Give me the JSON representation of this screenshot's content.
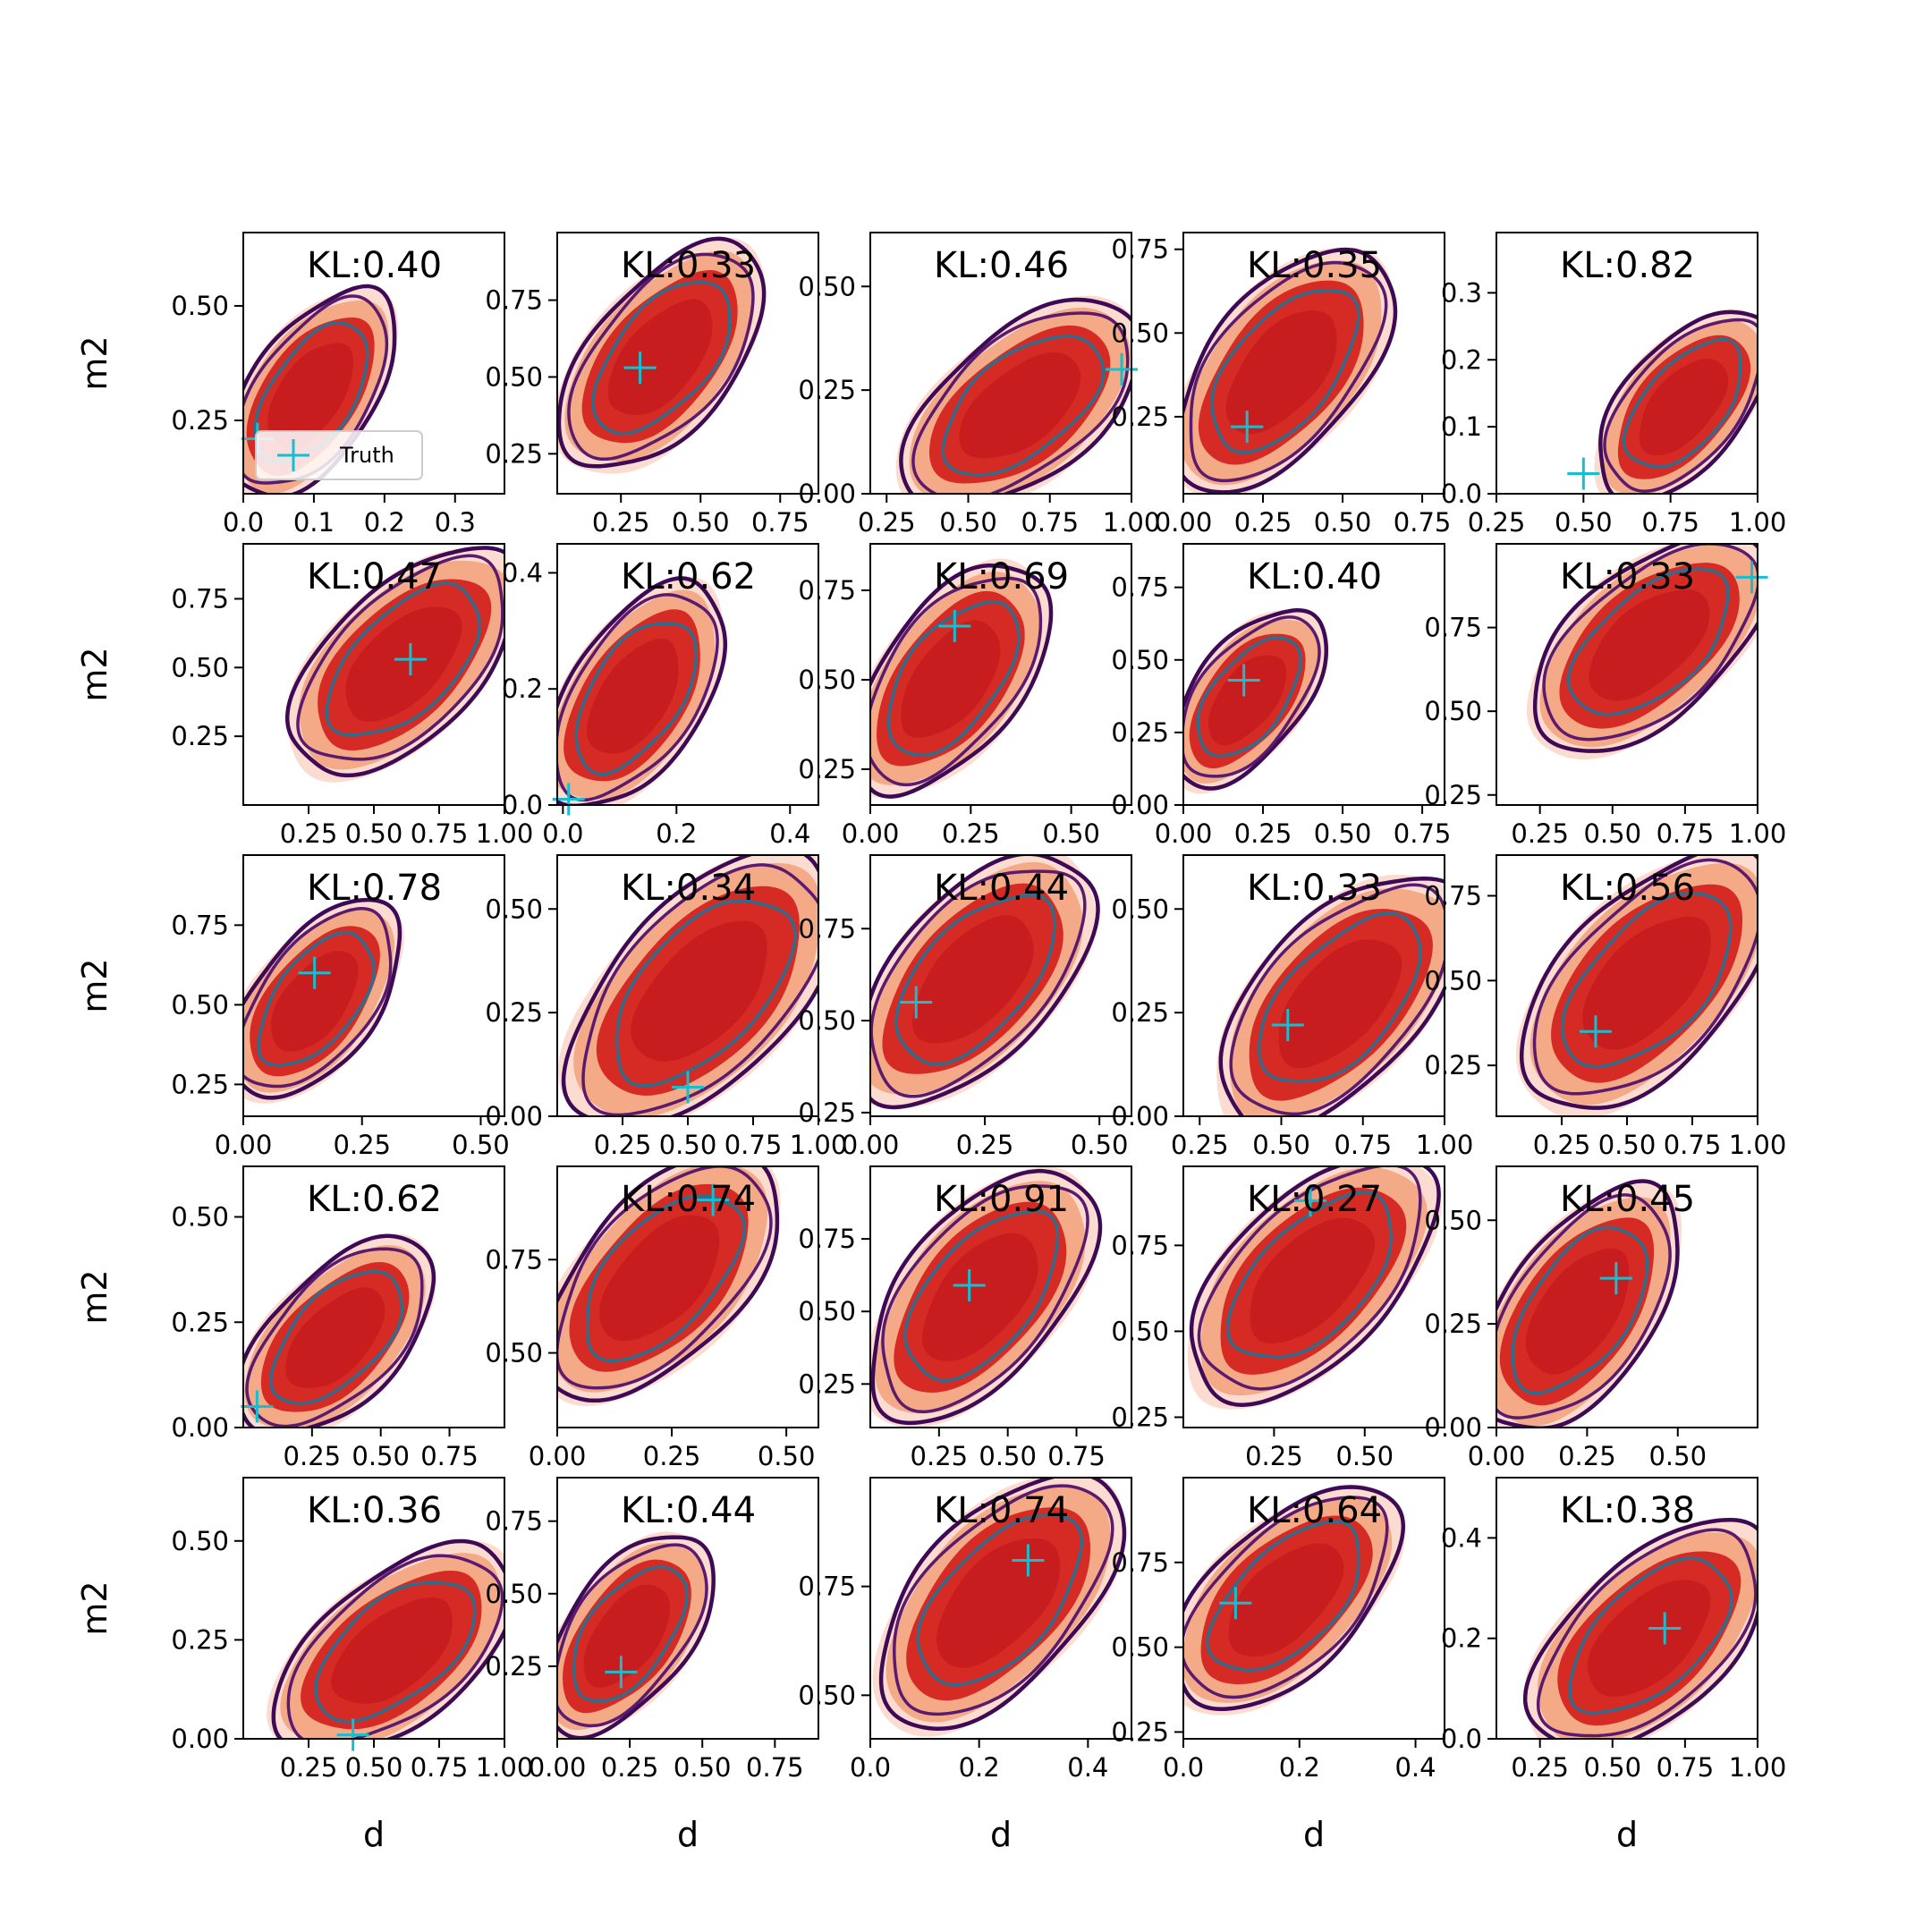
{
  "legend": {
    "label": "Truth",
    "position": "lower-left of first panel"
  },
  "colors": {
    "truth": "#17becf",
    "fill_outer": "#fcdcd0",
    "fill_mid": "#f4a987",
    "fill_inner": "#d62a25",
    "line_outer": "#3f0a55",
    "line_mid": "#5a1a6e",
    "line_inner": "#2d6e8e"
  },
  "chart_data": [
    {
      "type": "contour",
      "row": 0,
      "col": 0,
      "kl_label": "KL:0.40",
      "xlabel": "",
      "ylabel": "m2",
      "xlim": [
        0.0,
        0.37
      ],
      "ylim": [
        0.09,
        0.66
      ],
      "xticks": [
        0.0,
        0.1,
        0.2,
        0.3
      ],
      "xtick_labels": [
        "0.0",
        "0.1",
        "0.2",
        "0.3"
      ],
      "yticks": [
        0.25,
        0.5
      ],
      "ytick_labels": [
        "0.25",
        "0.50"
      ],
      "x": [
        0.0,
        0.19
      ],
      "y": [
        0.09,
        0.52
      ],
      "truth": [
        0.02,
        0.21
      ],
      "legend": true
    },
    {
      "type": "contour",
      "row": 0,
      "col": 1,
      "kl_label": "KL:0.33",
      "xlabel": "",
      "ylabel": "",
      "xlim": [
        0.05,
        0.87
      ],
      "ylim": [
        0.12,
        0.97
      ],
      "xticks": [
        0.25,
        0.5,
        0.75
      ],
      "xtick_labels": [
        "0.25",
        "0.50",
        "0.75"
      ],
      "yticks": [
        0.25,
        0.5,
        0.75
      ],
      "ytick_labels": [
        "0.25",
        "0.50",
        "0.75"
      ],
      "x": [
        0.1,
        0.65
      ],
      "y": [
        0.22,
        0.9
      ],
      "truth": [
        0.31,
        0.53
      ]
    },
    {
      "type": "contour",
      "row": 0,
      "col": 2,
      "kl_label": "KL:0.46",
      "xlabel": "",
      "ylabel": "",
      "xlim": [
        0.2,
        1.0
      ],
      "ylim": [
        0.0,
        0.63
      ],
      "xticks": [
        0.25,
        0.5,
        0.75,
        1.0
      ],
      "xtick_labels": [
        "0.25",
        "0.50",
        "0.75",
        "1.00"
      ],
      "yticks": [
        0.0,
        0.25,
        0.5
      ],
      "ytick_labels": [
        "0.00",
        "0.25",
        "0.50"
      ],
      "x": [
        0.32,
        1.0
      ],
      "y": [
        0.0,
        0.42
      ],
      "truth": [
        0.97,
        0.3
      ]
    },
    {
      "type": "contour",
      "row": 0,
      "col": 3,
      "kl_label": "KL:0.35",
      "xlabel": "",
      "ylabel": "",
      "xlim": [
        0.0,
        0.82
      ],
      "ylim": [
        0.02,
        0.8
      ],
      "xticks": [
        0.0,
        0.25,
        0.5,
        0.75
      ],
      "xtick_labels": [
        "0.00",
        "0.25",
        "0.50",
        "0.75"
      ],
      "yticks": [
        0.25,
        0.5,
        0.75
      ],
      "ytick_labels": [
        "0.25",
        "0.50",
        "0.75"
      ],
      "x": [
        0.02,
        0.6
      ],
      "y": [
        0.05,
        0.72
      ],
      "truth": [
        0.2,
        0.22
      ]
    },
    {
      "type": "contour",
      "row": 0,
      "col": 4,
      "kl_label": "KL:0.82",
      "xlabel": "",
      "ylabel": "",
      "xlim": [
        0.25,
        1.0
      ],
      "ylim": [
        0.0,
        0.39
      ],
      "xticks": [
        0.25,
        0.5,
        0.75,
        1.0
      ],
      "xtick_labels": [
        "0.25",
        "0.50",
        "0.75",
        "1.00"
      ],
      "yticks": [
        0.0,
        0.1,
        0.2,
        0.3
      ],
      "ytick_labels": [
        "0.0",
        "0.1",
        "0.2",
        "0.3"
      ],
      "x": [
        0.57,
        1.0
      ],
      "y": [
        0.0,
        0.26
      ],
      "truth": [
        0.5,
        0.03
      ]
    },
    {
      "type": "contour",
      "row": 1,
      "col": 0,
      "kl_label": "KL:0.47",
      "xlabel": "",
      "ylabel": "m2",
      "xlim": [
        0.0,
        1.0
      ],
      "ylim": [
        0.0,
        0.95
      ],
      "xticks": [
        0.25,
        0.5,
        0.75,
        1.0
      ],
      "xtick_labels": [
        "0.25",
        "0.50",
        "0.75",
        "1.00"
      ],
      "yticks": [
        0.25,
        0.5,
        0.75
      ],
      "ytick_labels": [
        "0.25",
        "0.50",
        "0.75"
      ],
      "x": [
        0.22,
        1.0
      ],
      "y": [
        0.15,
        0.88
      ],
      "truth": [
        0.64,
        0.53
      ]
    },
    {
      "type": "contour",
      "row": 1,
      "col": 1,
      "kl_label": "KL:0.62",
      "xlabel": "",
      "ylabel": "",
      "xlim": [
        -0.01,
        0.45
      ],
      "ylim": [
        0.0,
        0.45
      ],
      "xticks": [
        0.0,
        0.2,
        0.4
      ],
      "xtick_labels": [
        "0.0",
        "0.2",
        "0.4"
      ],
      "yticks": [
        0.0,
        0.2,
        0.4
      ],
      "ytick_labels": [
        "0.0",
        "0.2",
        "0.4"
      ],
      "x": [
        0.0,
        0.25
      ],
      "y": [
        0.0,
        0.37
      ],
      "truth": [
        0.01,
        0.01
      ]
    },
    {
      "type": "contour",
      "row": 1,
      "col": 2,
      "kl_label": "KL:0.69",
      "xlabel": "",
      "ylabel": "",
      "xlim": [
        0.0,
        0.65
      ],
      "ylim": [
        0.15,
        0.88
      ],
      "xticks": [
        0.0,
        0.25,
        0.5
      ],
      "xtick_labels": [
        "0.00",
        "0.25",
        "0.50"
      ],
      "yticks": [
        0.25,
        0.5,
        0.75
      ],
      "ytick_labels": [
        "0.25",
        "0.50",
        "0.75"
      ],
      "x": [
        0.0,
        0.4
      ],
      "y": [
        0.2,
        0.8
      ],
      "truth": [
        0.21,
        0.65
      ]
    },
    {
      "type": "contour",
      "row": 1,
      "col": 3,
      "kl_label": "KL:0.40",
      "xlabel": "",
      "ylabel": "",
      "xlim": [
        0.0,
        0.82
      ],
      "ylim": [
        0.0,
        0.9
      ],
      "xticks": [
        0.0,
        0.25,
        0.5,
        0.75
      ],
      "xtick_labels": [
        "0.00",
        "0.25",
        "0.50",
        "0.75"
      ],
      "yticks": [
        0.0,
        0.25,
        0.5,
        0.75
      ],
      "ytick_labels": [
        "0.00",
        "0.25",
        "0.50",
        "0.75"
      ],
      "x": [
        0.0,
        0.4
      ],
      "y": [
        0.08,
        0.65
      ],
      "truth": [
        0.19,
        0.43
      ]
    },
    {
      "type": "contour",
      "row": 1,
      "col": 4,
      "kl_label": "KL:0.33",
      "xlabel": "",
      "ylabel": "",
      "xlim": [
        0.1,
        1.0
      ],
      "ylim": [
        0.22,
        1.0
      ],
      "xticks": [
        0.25,
        0.5,
        0.75,
        1.0
      ],
      "xtick_labels": [
        "0.25",
        "0.50",
        "0.75",
        "1.00"
      ],
      "yticks": [
        0.25,
        0.5,
        0.75
      ],
      "ytick_labels": [
        "0.25",
        "0.50",
        "0.75"
      ],
      "x": [
        0.25,
        1.0
      ],
      "y": [
        0.42,
        0.98
      ],
      "truth": [
        0.98,
        0.9
      ]
    },
    {
      "type": "contour",
      "row": 2,
      "col": 0,
      "kl_label": "KL:0.78",
      "xlabel": "",
      "ylabel": "m2",
      "xlim": [
        0.0,
        0.55
      ],
      "ylim": [
        0.15,
        0.97
      ],
      "xticks": [
        0.0,
        0.25,
        0.5
      ],
      "xtick_labels": [
        "0.00",
        "0.25",
        "0.50"
      ],
      "yticks": [
        0.25,
        0.5,
        0.75
      ],
      "ytick_labels": [
        "0.25",
        "0.50",
        "0.75"
      ],
      "x": [
        0.0,
        0.3
      ],
      "y": [
        0.22,
        0.8
      ],
      "truth": [
        0.15,
        0.6
      ]
    },
    {
      "type": "contour",
      "row": 2,
      "col": 1,
      "kl_label": "KL:0.34",
      "xlabel": "",
      "ylabel": "",
      "xlim": [
        0.0,
        1.0
      ],
      "ylim": [
        0.0,
        0.63
      ],
      "xticks": [
        0.25,
        0.5,
        0.75,
        1.0
      ],
      "xtick_labels": [
        "0.25",
        "0.50",
        "0.75",
        "1.00"
      ],
      "yticks": [
        0.0,
        0.25,
        0.5
      ],
      "ytick_labels": [
        "0.00",
        "0.25",
        "0.50"
      ],
      "x": [
        0.1,
        1.0
      ],
      "y": [
        0.0,
        0.6
      ],
      "truth": [
        0.5,
        0.07
      ]
    },
    {
      "type": "contour",
      "row": 2,
      "col": 2,
      "kl_label": "KL:0.44",
      "xlabel": "",
      "ylabel": "",
      "xlim": [
        0.0,
        0.57
      ],
      "ylim": [
        0.24,
        0.95
      ],
      "xticks": [
        0.0,
        0.25,
        0.5
      ],
      "xtick_labels": [
        "0.00",
        "0.25",
        "0.50"
      ],
      "yticks": [
        0.25,
        0.5,
        0.75
      ],
      "ytick_labels": [
        "0.25",
        "0.50",
        "0.75"
      ],
      "x": [
        0.0,
        0.45
      ],
      "y": [
        0.3,
        0.92
      ],
      "truth": [
        0.1,
        0.55
      ]
    },
    {
      "type": "contour",
      "row": 2,
      "col": 3,
      "kl_label": "KL:0.33",
      "xlabel": "",
      "ylabel": "",
      "xlim": [
        0.2,
        1.0
      ],
      "ylim": [
        0.0,
        0.63
      ],
      "xticks": [
        0.25,
        0.5,
        0.75,
        1.0
      ],
      "xtick_labels": [
        "0.25",
        "0.50",
        "0.75",
        "1.00"
      ],
      "yticks": [
        0.0,
        0.25,
        0.5
      ],
      "ytick_labels": [
        "0.00",
        "0.25",
        "0.50"
      ],
      "x": [
        0.35,
        1.0
      ],
      "y": [
        0.0,
        0.55
      ],
      "truth": [
        0.52,
        0.22
      ]
    },
    {
      "type": "contour",
      "row": 2,
      "col": 4,
      "kl_label": "KL:0.56",
      "xlabel": "",
      "ylabel": "",
      "xlim": [
        0.0,
        1.0
      ],
      "ylim": [
        0.1,
        0.87
      ],
      "xticks": [
        0.25,
        0.5,
        0.75,
        1.0
      ],
      "xtick_labels": [
        "0.25",
        "0.50",
        "0.75",
        "1.00"
      ],
      "yticks": [
        0.25,
        0.5,
        0.75
      ],
      "ytick_labels": [
        "0.25",
        "0.50",
        "0.75"
      ],
      "x": [
        0.15,
        1.0
      ],
      "y": [
        0.15,
        0.84
      ],
      "truth": [
        0.38,
        0.35
      ]
    },
    {
      "type": "contour",
      "row": 3,
      "col": 0,
      "kl_label": "KL:0.62",
      "xlabel": "",
      "ylabel": "m2",
      "xlim": [
        0.0,
        0.95
      ],
      "ylim": [
        0.0,
        0.62
      ],
      "xticks": [
        0.25,
        0.5,
        0.75
      ],
      "xtick_labels": [
        "0.25",
        "0.50",
        "0.75"
      ],
      "yticks": [
        0.0,
        0.25,
        0.5
      ],
      "ytick_labels": [
        "0.00",
        "0.25",
        "0.50"
      ],
      "x": [
        0.02,
        0.65
      ],
      "y": [
        0.0,
        0.42
      ],
      "truth": [
        0.05,
        0.05
      ]
    },
    {
      "type": "contour",
      "row": 3,
      "col": 1,
      "kl_label": "KL:0.74",
      "xlabel": "",
      "ylabel": "",
      "xlim": [
        0.0,
        0.57
      ],
      "ylim": [
        0.3,
        1.0
      ],
      "xticks": [
        0.0,
        0.25,
        0.5
      ],
      "xtick_labels": [
        "0.00",
        "0.25",
        "0.50"
      ],
      "yticks": [
        0.5,
        0.75
      ],
      "ytick_labels": [
        "0.50",
        "0.75"
      ],
      "x": [
        0.0,
        0.45
      ],
      "y": [
        0.4,
        1.0
      ],
      "truth": [
        0.34,
        0.91
      ]
    },
    {
      "type": "contour",
      "row": 3,
      "col": 2,
      "kl_label": "KL:0.91",
      "xlabel": "",
      "ylabel": "",
      "xlim": [
        0.0,
        0.95
      ],
      "ylim": [
        0.1,
        1.0
      ],
      "xticks": [
        0.25,
        0.5,
        0.75
      ],
      "xtick_labels": [
        "0.25",
        "0.50",
        "0.75"
      ],
      "yticks": [
        0.25,
        0.5,
        0.75
      ],
      "ytick_labels": [
        "0.25",
        "0.50",
        "0.75"
      ],
      "x": [
        0.05,
        0.75
      ],
      "y": [
        0.15,
        0.95
      ],
      "truth": [
        0.36,
        0.59
      ]
    },
    {
      "type": "contour",
      "row": 3,
      "col": 3,
      "kl_label": "KL:0.27",
      "xlabel": "",
      "ylabel": "",
      "xlim": [
        0.0,
        0.72
      ],
      "ylim": [
        0.22,
        0.98
      ],
      "xticks": [
        0.25,
        0.5
      ],
      "xtick_labels": [
        "0.25",
        "0.50"
      ],
      "yticks": [
        0.25,
        0.5,
        0.75
      ],
      "ytick_labels": [
        "0.25",
        "0.50",
        "0.75"
      ],
      "x": [
        0.05,
        0.65
      ],
      "y": [
        0.33,
        0.97
      ],
      "truth": [
        0.35,
        0.88
      ]
    },
    {
      "type": "contour",
      "row": 3,
      "col": 4,
      "kl_label": "KL:0.45",
      "xlabel": "",
      "ylabel": "",
      "xlim": [
        0.0,
        0.72
      ],
      "ylim": [
        0.0,
        0.63
      ],
      "xticks": [
        0.0,
        0.25,
        0.5
      ],
      "xtick_labels": [
        "0.00",
        "0.25",
        "0.50"
      ],
      "yticks": [
        0.0,
        0.25,
        0.5
      ],
      "ytick_labels": [
        "0.00",
        "0.25",
        "0.50"
      ],
      "x": [
        0.0,
        0.45
      ],
      "y": [
        0.0,
        0.56
      ],
      "truth": [
        0.33,
        0.36
      ]
    },
    {
      "type": "contour",
      "row": 4,
      "col": 0,
      "kl_label": "KL:0.36",
      "xlabel": "d",
      "ylabel": "m2",
      "xlim": [
        0.0,
        1.0
      ],
      "ylim": [
        0.0,
        0.66
      ],
      "xticks": [
        0.25,
        0.5,
        0.75,
        1.0
      ],
      "xtick_labels": [
        "0.25",
        "0.50",
        "0.75",
        "1.00"
      ],
      "yticks": [
        0.0,
        0.25,
        0.5
      ],
      "ytick_labels": [
        "0.00",
        "0.25",
        "0.50"
      ],
      "x": [
        0.15,
        1.0
      ],
      "y": [
        0.0,
        0.44
      ],
      "truth": [
        0.42,
        0.01
      ]
    },
    {
      "type": "contour",
      "row": 4,
      "col": 1,
      "kl_label": "KL:0.44",
      "xlabel": "d",
      "ylabel": "",
      "xlim": [
        0.0,
        0.9
      ],
      "ylim": [
        0.0,
        0.9
      ],
      "xticks": [
        0.0,
        0.25,
        0.5,
        0.75
      ],
      "xtick_labels": [
        "0.00",
        "0.25",
        "0.50",
        "0.75"
      ],
      "yticks": [
        0.25,
        0.5,
        0.75
      ],
      "ytick_labels": [
        "0.25",
        "0.50",
        "0.75"
      ],
      "x": [
        0.0,
        0.48
      ],
      "y": [
        0.03,
        0.68
      ],
      "truth": [
        0.22,
        0.23
      ]
    },
    {
      "type": "contour",
      "row": 4,
      "col": 2,
      "kl_label": "KL:0.74",
      "xlabel": "d",
      "ylabel": "",
      "xlim": [
        0.0,
        0.48
      ],
      "ylim": [
        0.4,
        1.0
      ],
      "xticks": [
        0.0,
        0.2,
        0.4
      ],
      "xtick_labels": [
        "0.0",
        "0.2",
        "0.4"
      ],
      "yticks": [
        0.5,
        0.75
      ],
      "ytick_labels": [
        "0.50",
        "0.75"
      ],
      "x": [
        0.04,
        0.43
      ],
      "y": [
        0.45,
        0.98
      ],
      "truth": [
        0.29,
        0.81
      ]
    },
    {
      "type": "contour",
      "row": 4,
      "col": 3,
      "kl_label": "KL:0.64",
      "xlabel": "d",
      "ylabel": "",
      "xlim": [
        0.0,
        0.45
      ],
      "ylim": [
        0.23,
        1.0
      ],
      "xticks": [
        0.0,
        0.2,
        0.4
      ],
      "xtick_labels": [
        "0.0",
        "0.2",
        "0.4"
      ],
      "yticks": [
        0.25,
        0.5,
        0.75
      ],
      "ytick_labels": [
        "0.25",
        "0.50",
        "0.75"
      ],
      "x": [
        0.0,
        0.35
      ],
      "y": [
        0.35,
        0.93
      ],
      "truth": [
        0.09,
        0.63
      ]
    },
    {
      "type": "contour",
      "row": 4,
      "col": 4,
      "kl_label": "KL:0.38",
      "xlabel": "d",
      "ylabel": "",
      "xlim": [
        0.1,
        1.0
      ],
      "ylim": [
        0.0,
        0.52
      ],
      "xticks": [
        0.25,
        0.5,
        0.75,
        1.0
      ],
      "xtick_labels": [
        "0.25",
        "0.50",
        "0.75",
        "1.00"
      ],
      "yticks": [
        0.0,
        0.2,
        0.4
      ],
      "ytick_labels": [
        "0.0",
        "0.2",
        "0.4"
      ],
      "x": [
        0.25,
        1.0
      ],
      "y": [
        0.0,
        0.4
      ],
      "truth": [
        0.68,
        0.22
      ]
    }
  ]
}
